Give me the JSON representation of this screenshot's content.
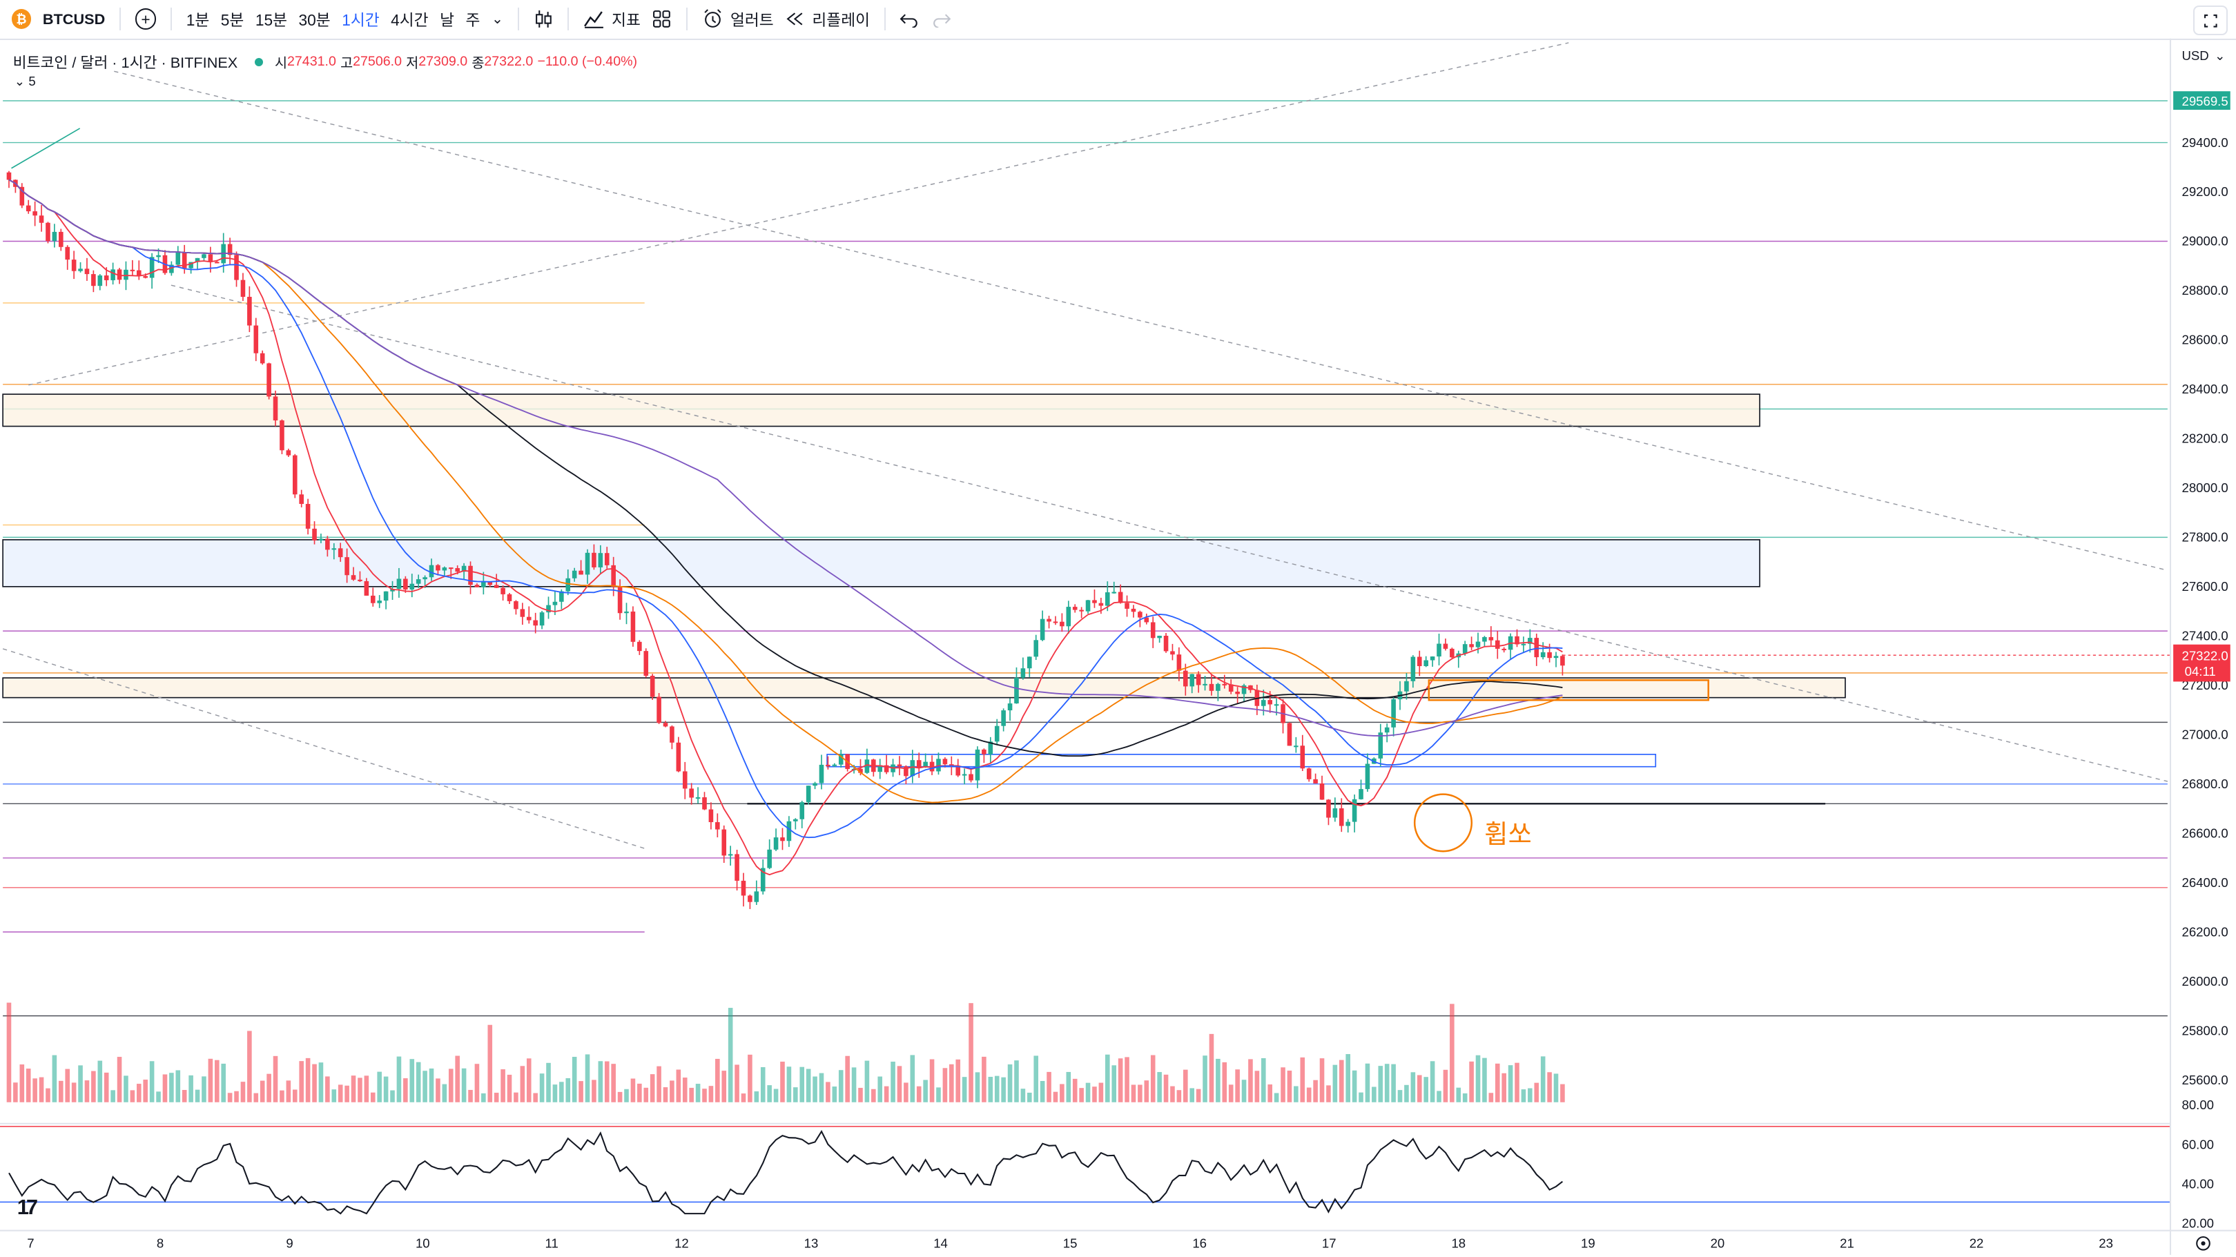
{
  "toolbar": {
    "coin_glyph": "₿",
    "symbol": "BTCUSD",
    "add_icon": "+",
    "intervals": [
      "1분",
      "5분",
      "15분",
      "30분",
      "1시간",
      "4시간",
      "날",
      "주"
    ],
    "active_interval": "1시간",
    "chevron": "⌄",
    "indicators_label": "지표",
    "alert_label": "얼러트",
    "replay_label": "리플레이"
  },
  "legend": {
    "title": "비트코인 / 달러 · 1시간 · BITFINEX",
    "open_label": "시",
    "open": "27431.0",
    "high_label": "고",
    "high": "27506.0",
    "low_label": "저",
    "low": "27309.0",
    "close_label": "종",
    "close": "27322.0",
    "change": "−110.0 (−0.40%)",
    "indicator_count": "⌄ 5"
  },
  "price_axis": {
    "currency": "USD",
    "ticks": [
      "29400.0",
      "29200.0",
      "29000.0",
      "28800.0",
      "28600.0",
      "28400.0",
      "28200.0",
      "28000.0",
      "27800.0",
      "27600.0",
      "27400.0",
      "27200.0",
      "27000.0",
      "26800.0",
      "26600.0",
      "26400.0",
      "26200.0",
      "26000.0",
      "25800.0",
      "25600.0"
    ],
    "badge_high": "29569.5",
    "badge_last": "27322.0",
    "countdown": "04:11"
  },
  "rsi_axis": {
    "ticks": [
      "80.00",
      "60.00",
      "40.00",
      "20.00"
    ]
  },
  "time_axis": {
    "labels": [
      "7",
      "8",
      "9",
      "10",
      "11",
      "12",
      "13",
      "14",
      "15",
      "16",
      "17",
      "18",
      "19",
      "20",
      "21",
      "22",
      "23"
    ]
  },
  "annotation": {
    "text": "휩쏘"
  },
  "colors": {
    "up": "#22ab94",
    "down": "#f23645",
    "accent": "#2962ff",
    "annotation": "#f57c00"
  },
  "chart_data": {
    "type": "candlestick",
    "symbol": "BTCUSD",
    "exchange": "BITFINEX",
    "timeframe": "1시간",
    "currency": "USD",
    "ylim": [
      25500,
      29700
    ],
    "last_price": 27322.0,
    "ohlc_last": {
      "open": 27431.0,
      "high": 27506.0,
      "low": 27309.0,
      "close": 27322.0
    },
    "x": [
      "7",
      "8",
      "9",
      "10",
      "11",
      "12",
      "13",
      "14",
      "15",
      "16",
      "17",
      "18",
      "19"
    ],
    "approx_price_path": [
      29250,
      28850,
      28900,
      28950,
      27850,
      27550,
      27700,
      27450,
      27750,
      26900,
      26350,
      26900,
      26880,
      26850,
      27450,
      27550,
      27200,
      27150,
      26620,
      27300,
      27400,
      27322
    ],
    "horizontal_levels": [
      29569.5,
      29400,
      29000,
      28750,
      28420,
      28320,
      27850,
      27800,
      27420,
      27250,
      27050,
      26800,
      26720,
      26500,
      26380,
      26200,
      25860
    ],
    "zones": [
      [
        28250,
        28380
      ],
      [
        27600,
        27790
      ],
      [
        27150,
        27230
      ],
      [
        26870,
        26920
      ]
    ],
    "rsi": {
      "ylim": [
        20,
        80
      ],
      "ticks": [
        80,
        60,
        40,
        20
      ]
    }
  }
}
